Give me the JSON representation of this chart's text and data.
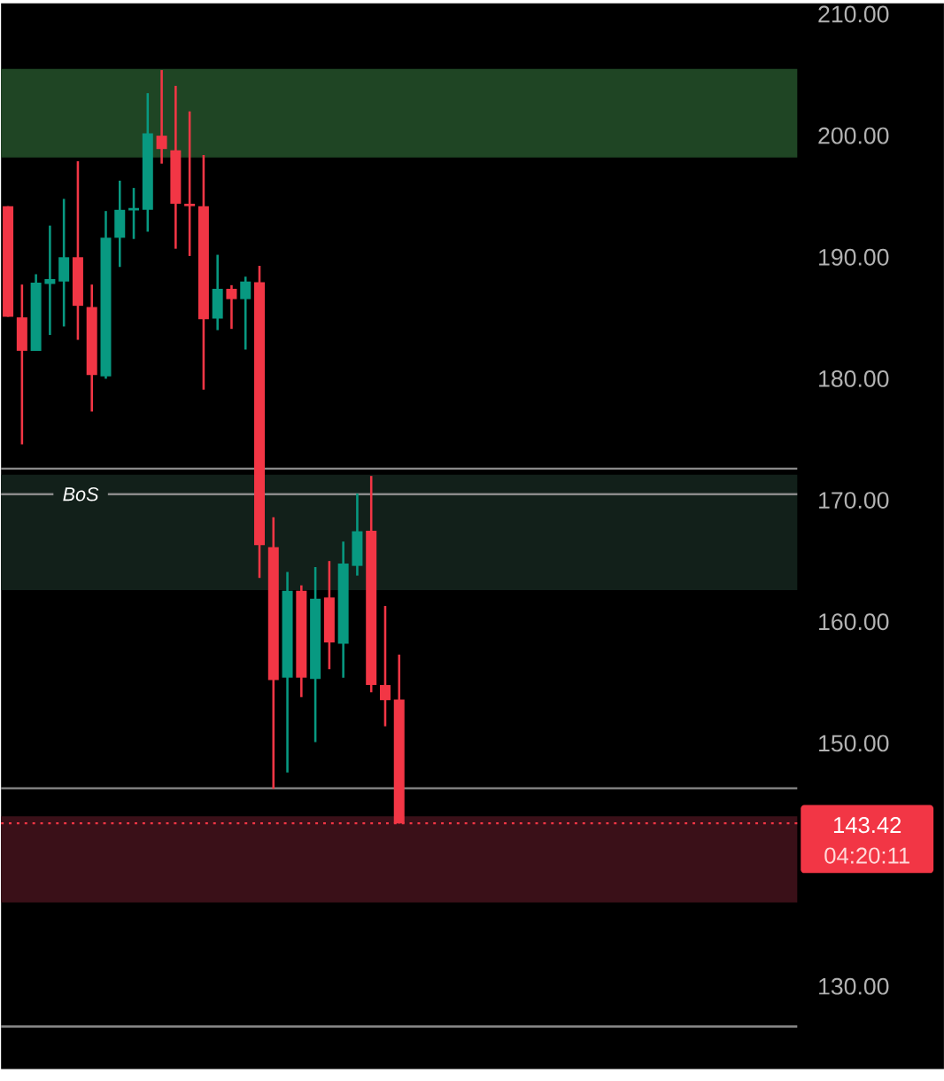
{
  "chart_data": {
    "type": "candlestick",
    "categories": [
      null,
      null,
      null,
      null,
      null,
      null,
      null,
      null,
      null,
      null,
      null,
      null,
      null,
      null,
      null,
      null,
      null,
      null,
      null,
      null,
      null,
      null,
      null,
      null,
      null,
      null,
      null,
      null,
      null,
      null,
      null,
      null,
      null,
      null,
      null,
      null,
      null,
      null,
      null,
      null,
      null,
      null,
      null,
      null,
      null,
      null,
      null,
      null,
      null,
      null,
      null,
      null,
      null,
      null,
      null,
      null,
      null
    ],
    "ohlc": [
      [
        194.2,
        194.2,
        185.1,
        185.1
      ],
      [
        185.05,
        187.75,
        174.6,
        182.3
      ],
      [
        182.3,
        188.6,
        182.3,
        187.9
      ],
      [
        187.8,
        192.6,
        183.6,
        188.2
      ],
      [
        188.0,
        194.8,
        184.3,
        190.0
      ],
      [
        190.0,
        197.9,
        183.2,
        186.0
      ],
      [
        185.9,
        187.75,
        177.3,
        180.3
      ],
      [
        180.2,
        193.8,
        180.0,
        191.6
      ],
      [
        191.6,
        196.3,
        189.2,
        193.9
      ],
      [
        193.85,
        195.7,
        191.5,
        194.05
      ],
      [
        193.9,
        203.5,
        192.1,
        200.2
      ],
      [
        200.0,
        205.4,
        197.7,
        198.9
      ],
      [
        198.8,
        204.1,
        190.7,
        194.4
      ],
      [
        194.4,
        202.0,
        190.1,
        194.2
      ],
      [
        194.2,
        198.4,
        179.1,
        184.9
      ],
      [
        184.95,
        190.2,
        184.0,
        187.4
      ],
      [
        187.4,
        187.7,
        184.1,
        186.55
      ],
      [
        186.55,
        188.4,
        182.4,
        188.0
      ],
      [
        187.95,
        189.3,
        163.6,
        166.3
      ],
      [
        166.15,
        168.6,
        146.25,
        155.2
      ],
      [
        155.4,
        164.1,
        147.6,
        162.55
      ],
      [
        162.55,
        163.0,
        153.8,
        155.4
      ],
      [
        155.3,
        164.5,
        150.1,
        161.9
      ],
      [
        162.0,
        165.0,
        156.1,
        158.3
      ],
      [
        158.2,
        166.6,
        155.4,
        164.8
      ],
      [
        164.6,
        170.55,
        163.8,
        167.45
      ],
      [
        167.5,
        172.0,
        154.2,
        154.8
      ],
      [
        154.8,
        161.3,
        151.4,
        153.55
      ],
      [
        153.6,
        157.3,
        143.4,
        143.42
      ],
      null,
      null,
      null,
      null,
      null,
      null,
      null,
      null,
      null,
      null,
      null,
      null,
      null,
      null,
      null,
      null,
      null,
      null,
      null,
      null,
      null,
      null,
      null,
      null,
      null,
      null,
      null,
      null
    ],
    "ylim": [
      123.2,
      210.9
    ],
    "yticks": [
      {
        "value": 130,
        "label": "130.00"
      },
      {
        "value": 150,
        "label": "150.00"
      },
      {
        "value": 160,
        "label": "160.00"
      },
      {
        "value": 170,
        "label": "170.00"
      },
      {
        "value": 180,
        "label": "180.00"
      },
      {
        "value": 190,
        "label": "190.00"
      },
      {
        "value": 200,
        "label": "200.00"
      },
      {
        "value": 210,
        "label": "210.00"
      }
    ],
    "tick_labels": "y",
    "bands": [
      {
        "axis": "y",
        "from": 198.2,
        "to": 205.5,
        "color": "#1f4524"
      },
      {
        "axis": "y",
        "from": 162.6,
        "to": 172.1,
        "color": "#12201a"
      },
      {
        "axis": "y",
        "from": 136.9,
        "to": 144.0,
        "color": "#3a1018"
      }
    ],
    "ref_lines": [
      {
        "axis": "y",
        "value": 170.5,
        "label": "BoS",
        "color": "#8a8a8a"
      },
      {
        "axis": "y",
        "value": 172.6,
        "color": "#8a8a8a"
      },
      {
        "axis": "y",
        "value": 146.3,
        "color": "#8a8a8a"
      },
      {
        "axis": "y",
        "value": 126.7,
        "color": "#8a8a8a"
      },
      {
        "axis": "y",
        "value": 143.42,
        "label": "143.42",
        "color": "#f23645",
        "line_style": "dotted"
      }
    ],
    "annotations": [
      "04:20:11"
    ]
  }
}
